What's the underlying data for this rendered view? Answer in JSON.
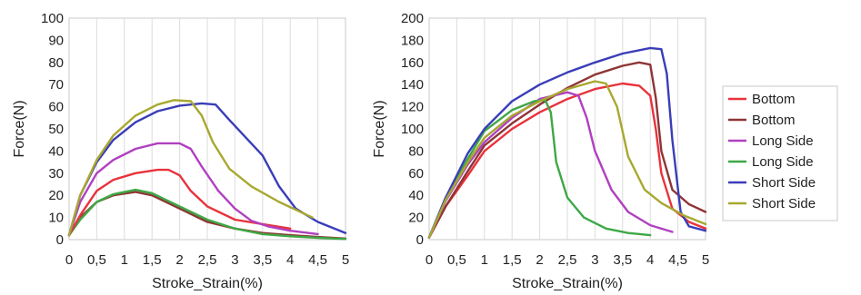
{
  "chart_data": [
    {
      "type": "line",
      "xlabel": "Stroke_Strain(%)",
      "ylabel": "Force(N)",
      "xlim": [
        0,
        5
      ],
      "ylim": [
        0,
        100
      ],
      "x_ticks": [
        "0",
        "0,5",
        "1",
        "1,5",
        "2",
        "2,5",
        "3",
        "3,5",
        "4",
        "4,5",
        "5"
      ],
      "y_ticks": [
        "0",
        "10",
        "20",
        "30",
        "40",
        "50",
        "60",
        "70",
        "80",
        "90",
        "100"
      ],
      "grid": "vertical",
      "legend": "none",
      "series": [
        {
          "color": "#8e3535",
          "points": [
            [
              0,
              2
            ],
            [
              0.2,
              10
            ],
            [
              0.5,
              17
            ],
            [
              0.8,
              20
            ],
            [
              1.2,
              21.5
            ],
            [
              1.5,
              20
            ],
            [
              2,
              14
            ],
            [
              2.5,
              8
            ],
            [
              3,
              5
            ],
            [
              3.5,
              3
            ],
            [
              4,
              2
            ],
            [
              4.5,
              1.2
            ],
            [
              5,
              0.5
            ]
          ]
        },
        {
          "color": "#3ea845",
          "points": [
            [
              0,
              2
            ],
            [
              0.2,
              9
            ],
            [
              0.5,
              17
            ],
            [
              0.8,
              20.5
            ],
            [
              1.2,
              22.5
            ],
            [
              1.5,
              21
            ],
            [
              2,
              15
            ],
            [
              2.5,
              9
            ],
            [
              3,
              5
            ],
            [
              3.5,
              2.5
            ],
            [
              4,
              1.5
            ],
            [
              4.5,
              0.8
            ],
            [
              5,
              0.3
            ]
          ]
        },
        {
          "color": "#e8323c",
          "points": [
            [
              0,
              2
            ],
            [
              0.2,
              11
            ],
            [
              0.5,
              22
            ],
            [
              0.8,
              27
            ],
            [
              1.2,
              30
            ],
            [
              1.6,
              31.5
            ],
            [
              1.8,
              31.5
            ],
            [
              2,
              29
            ],
            [
              2.2,
              22
            ],
            [
              2.5,
              15
            ],
            [
              3,
              9
            ],
            [
              3.5,
              7
            ],
            [
              4,
              5
            ]
          ]
        },
        {
          "color": "#b040c0",
          "points": [
            [
              0,
              2
            ],
            [
              0.2,
              17
            ],
            [
              0.5,
              30
            ],
            [
              0.8,
              36
            ],
            [
              1.2,
              41
            ],
            [
              1.6,
              43.5
            ],
            [
              2,
              43.5
            ],
            [
              2.2,
              41
            ],
            [
              2.4,
              33
            ],
            [
              2.7,
              22
            ],
            [
              3,
              14
            ],
            [
              3.3,
              8.5
            ],
            [
              3.6,
              6
            ],
            [
              4,
              4
            ],
            [
              4.5,
              2.5
            ]
          ]
        },
        {
          "color": "#3a3db8",
          "points": [
            [
              0,
              2
            ],
            [
              0.2,
              20
            ],
            [
              0.5,
              35
            ],
            [
              0.8,
              45
            ],
            [
              1.2,
              53
            ],
            [
              1.6,
              58
            ],
            [
              2,
              60.5
            ],
            [
              2.4,
              61.5
            ],
            [
              2.65,
              61
            ],
            [
              2.9,
              54
            ],
            [
              3.2,
              46
            ],
            [
              3.5,
              38
            ],
            [
              3.8,
              24
            ],
            [
              4.1,
              14
            ],
            [
              4.5,
              8
            ],
            [
              5,
              3
            ]
          ]
        },
        {
          "color": "#a8a830",
          "points": [
            [
              0,
              2
            ],
            [
              0.2,
              20
            ],
            [
              0.5,
              36
            ],
            [
              0.8,
              47
            ],
            [
              1.2,
              56
            ],
            [
              1.6,
              61
            ],
            [
              1.9,
              63
            ],
            [
              2.2,
              62.5
            ],
            [
              2.4,
              56
            ],
            [
              2.6,
              44
            ],
            [
              2.9,
              32
            ],
            [
              3.3,
              24
            ],
            [
              3.8,
              17
            ],
            [
              4.4,
              10
            ]
          ]
        }
      ]
    },
    {
      "type": "line",
      "xlabel": "Stroke_Strain(%)",
      "ylabel": "Force(N)",
      "xlim": [
        0,
        5
      ],
      "ylim": [
        0,
        200
      ],
      "x_ticks": [
        "0",
        "0,5",
        "1",
        "1,5",
        "2",
        "2,5",
        "3",
        "3,5",
        "4",
        "4,5",
        "5"
      ],
      "y_ticks": [
        "0",
        "20",
        "40",
        "60",
        "80",
        "100",
        "120",
        "140",
        "160",
        "180",
        "200"
      ],
      "grid": "vertical",
      "legend": "right",
      "series": [
        {
          "name": "Bottom",
          "color": "#e8323c",
          "points": [
            [
              0,
              2
            ],
            [
              0.3,
              30
            ],
            [
              0.7,
              58
            ],
            [
              1,
              80
            ],
            [
              1.5,
              100
            ],
            [
              2,
              115
            ],
            [
              2.5,
              127
            ],
            [
              3,
              136
            ],
            [
              3.5,
              141
            ],
            [
              3.8,
              139
            ],
            [
              4,
              130
            ],
            [
              4.1,
              100
            ],
            [
              4.2,
              60
            ],
            [
              4.4,
              28
            ],
            [
              4.7,
              16
            ],
            [
              5,
              10
            ]
          ]
        },
        {
          "name": "Bottom",
          "color": "#8e3535",
          "points": [
            [
              0,
              2
            ],
            [
              0.3,
              30
            ],
            [
              0.7,
              62
            ],
            [
              1,
              85
            ],
            [
              1.5,
              105
            ],
            [
              2,
              122
            ],
            [
              2.5,
              137
            ],
            [
              3,
              149
            ],
            [
              3.5,
              157
            ],
            [
              3.8,
              160
            ],
            [
              4,
              158
            ],
            [
              4.1,
              128
            ],
            [
              4.2,
              80
            ],
            [
              4.4,
              45
            ],
            [
              4.7,
              32
            ],
            [
              5,
              25
            ]
          ]
        },
        {
          "name": "Long Side",
          "color": "#b040c0",
          "points": [
            [
              0,
              2
            ],
            [
              0.3,
              35
            ],
            [
              0.7,
              68
            ],
            [
              1,
              88
            ],
            [
              1.5,
              110
            ],
            [
              2,
              127
            ],
            [
              2.5,
              133
            ],
            [
              2.7,
              130
            ],
            [
              2.85,
              110
            ],
            [
              3,
              80
            ],
            [
              3.3,
              45
            ],
            [
              3.6,
              25
            ],
            [
              4,
              13
            ],
            [
              4.4,
              7
            ]
          ]
        },
        {
          "name": "Long Side",
          "color": "#3ea845",
          "points": [
            [
              0,
              2
            ],
            [
              0.3,
              38
            ],
            [
              0.7,
              73
            ],
            [
              1,
              98
            ],
            [
              1.5,
              117
            ],
            [
              1.9,
              125
            ],
            [
              2.1,
              126
            ],
            [
              2.2,
              115
            ],
            [
              2.3,
              70
            ],
            [
              2.5,
              38
            ],
            [
              2.8,
              20
            ],
            [
              3.2,
              10
            ],
            [
              3.6,
              6
            ],
            [
              4,
              4
            ]
          ]
        },
        {
          "name": "Short Side",
          "color": "#3a3db8",
          "points": [
            [
              0,
              2
            ],
            [
              0.3,
              38
            ],
            [
              0.7,
              78
            ],
            [
              1,
              100
            ],
            [
              1.5,
              125
            ],
            [
              2,
              140
            ],
            [
              2.5,
              151
            ],
            [
              3,
              160
            ],
            [
              3.5,
              168
            ],
            [
              4,
              173
            ],
            [
              4.2,
              172
            ],
            [
              4.3,
              150
            ],
            [
              4.4,
              90
            ],
            [
              4.55,
              25
            ],
            [
              4.7,
              12
            ],
            [
              5,
              8
            ]
          ]
        },
        {
          "name": "Short Side",
          "color": "#a8a830",
          "points": [
            [
              0,
              2
            ],
            [
              0.3,
              36
            ],
            [
              0.7,
              70
            ],
            [
              1,
              92
            ],
            [
              1.5,
              112
            ],
            [
              2,
              125
            ],
            [
              2.5,
              136
            ],
            [
              3,
              143
            ],
            [
              3.2,
              141
            ],
            [
              3.4,
              120
            ],
            [
              3.6,
              75
            ],
            [
              3.9,
              45
            ],
            [
              4.2,
              33
            ],
            [
              4.6,
              22
            ],
            [
              5,
              14
            ]
          ]
        }
      ]
    }
  ]
}
